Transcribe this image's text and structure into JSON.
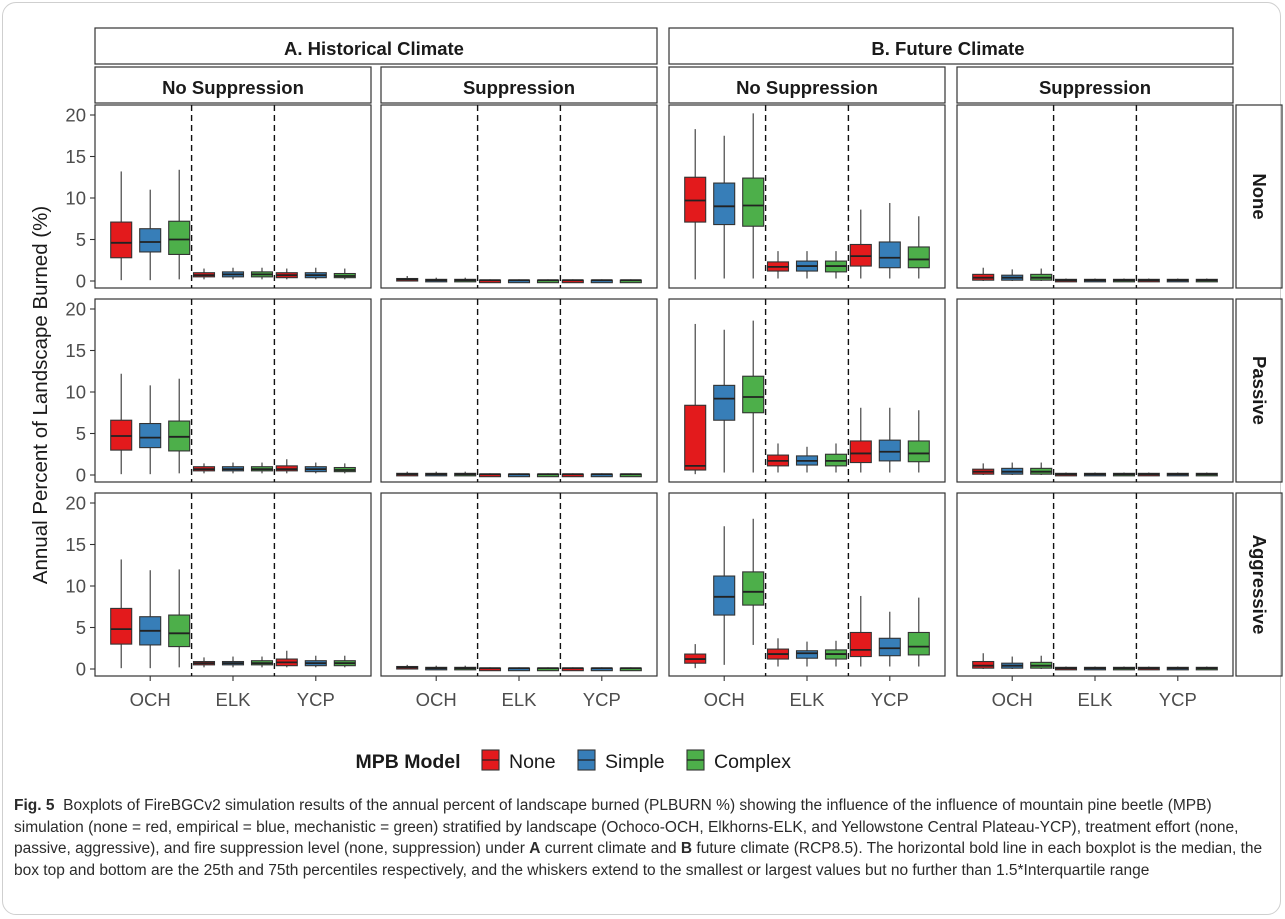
{
  "chart_data": {
    "type": "boxplot",
    "ylabel": "Annual Percent of Landscape Burned (%)",
    "ylim": [
      0,
      20
    ],
    "yticks": [
      0,
      5,
      10,
      15,
      20
    ],
    "climates": [
      "A. Historical Climate",
      "B. Future Climate"
    ],
    "suppression_levels": [
      "No Suppression",
      "Suppression"
    ],
    "treatments": [
      "None",
      "Passive",
      "Aggressive"
    ],
    "landscapes": [
      "OCH",
      "ELK",
      "YCP"
    ],
    "legend": {
      "title": "MPB Model",
      "position": "bottom",
      "entries": [
        {
          "name": "None",
          "color": "#e31a1c"
        },
        {
          "name": "Simple",
          "color": "#377eb8"
        },
        {
          "name": "Complex",
          "color": "#4daf4a"
        }
      ]
    },
    "box_fields": [
      "min",
      "q1",
      "median",
      "q3",
      "max"
    ],
    "panels": [
      {
        "climate": 0,
        "suppression": 0,
        "treatment": 0,
        "boxes": [
          [
            [
              0.1,
              2.8,
              4.6,
              7.1,
              13.2
            ],
            [
              0.1,
              3.5,
              4.7,
              6.3,
              11.0
            ],
            [
              0.2,
              3.2,
              5.0,
              7.2,
              13.4
            ]
          ],
          [
            [
              0.2,
              0.5,
              0.7,
              1.0,
              1.5
            ],
            [
              0.2,
              0.5,
              0.8,
              1.1,
              1.6
            ],
            [
              0.2,
              0.5,
              0.8,
              1.1,
              1.6
            ]
          ],
          [
            [
              0.2,
              0.4,
              0.7,
              1.0,
              1.5
            ],
            [
              0.2,
              0.4,
              0.7,
              1.0,
              1.6
            ],
            [
              0.2,
              0.4,
              0.6,
              0.9,
              1.5
            ]
          ]
        ]
      },
      {
        "climate": 0,
        "suppression": 0,
        "treatment": 1,
        "boxes": [
          [
            [
              0.1,
              3.0,
              4.7,
              6.6,
              12.2
            ],
            [
              0.1,
              3.3,
              4.5,
              6.2,
              10.8
            ],
            [
              0.2,
              2.9,
              4.6,
              6.5,
              11.6
            ]
          ],
          [
            [
              0.2,
              0.5,
              0.7,
              1.0,
              1.4
            ],
            [
              0.2,
              0.5,
              0.7,
              1.0,
              1.5
            ],
            [
              0.2,
              0.5,
              0.7,
              1.0,
              1.5
            ]
          ],
          [
            [
              0.2,
              0.5,
              0.7,
              1.1,
              1.9
            ],
            [
              0.2,
              0.4,
              0.7,
              1.0,
              1.5
            ],
            [
              0.2,
              0.4,
              0.6,
              0.9,
              1.4
            ]
          ]
        ]
      },
      {
        "climate": 0,
        "suppression": 0,
        "treatment": 2,
        "boxes": [
          [
            [
              0.1,
              3.0,
              4.8,
              7.3,
              13.2
            ],
            [
              0.1,
              2.9,
              4.6,
              6.3,
              11.9
            ],
            [
              0.2,
              2.7,
              4.3,
              6.5,
              12.0
            ]
          ],
          [
            [
              0.2,
              0.5,
              0.7,
              0.9,
              1.4
            ],
            [
              0.2,
              0.5,
              0.7,
              0.9,
              1.5
            ],
            [
              0.2,
              0.5,
              0.7,
              1.0,
              1.5
            ]
          ],
          [
            [
              0.2,
              0.4,
              0.8,
              1.2,
              2.2
            ],
            [
              0.2,
              0.4,
              0.7,
              1.0,
              1.6
            ],
            [
              0.2,
              0.4,
              0.7,
              1.0,
              1.6
            ]
          ]
        ]
      },
      {
        "climate": 0,
        "suppression": 1,
        "treatment": 0,
        "boxes": [
          [
            [
              0.0,
              0.1,
              0.2,
              0.3,
              0.6
            ],
            [
              0.0,
              0.1,
              0.1,
              0.2,
              0.4
            ],
            [
              0.0,
              0.1,
              0.1,
              0.2,
              0.4
            ]
          ],
          [
            [
              0.0,
              0.0,
              0.1,
              0.1,
              0.2
            ],
            [
              0.0,
              0.0,
              0.1,
              0.1,
              0.2
            ],
            [
              0.0,
              0.0,
              0.1,
              0.1,
              0.2
            ]
          ],
          [
            [
              0.0,
              0.0,
              0.1,
              0.1,
              0.2
            ],
            [
              0.0,
              0.0,
              0.1,
              0.1,
              0.2
            ],
            [
              0.0,
              0.0,
              0.1,
              0.1,
              0.2
            ]
          ]
        ]
      },
      {
        "climate": 0,
        "suppression": 1,
        "treatment": 1,
        "boxes": [
          [
            [
              0.0,
              0.1,
              0.1,
              0.2,
              0.4
            ],
            [
              0.0,
              0.1,
              0.1,
              0.2,
              0.4
            ],
            [
              0.0,
              0.1,
              0.1,
              0.2,
              0.4
            ]
          ],
          [
            [
              0.0,
              0.0,
              0.1,
              0.1,
              0.2
            ],
            [
              0.0,
              0.0,
              0.1,
              0.1,
              0.2
            ],
            [
              0.0,
              0.0,
              0.1,
              0.1,
              0.2
            ]
          ],
          [
            [
              0.0,
              0.0,
              0.1,
              0.1,
              0.2
            ],
            [
              0.0,
              0.0,
              0.1,
              0.1,
              0.2
            ],
            [
              0.0,
              0.0,
              0.1,
              0.1,
              0.2
            ]
          ]
        ]
      },
      {
        "climate": 0,
        "suppression": 1,
        "treatment": 2,
        "boxes": [
          [
            [
              0.0,
              0.1,
              0.2,
              0.3,
              0.5
            ],
            [
              0.0,
              0.1,
              0.1,
              0.2,
              0.4
            ],
            [
              0.0,
              0.1,
              0.1,
              0.2,
              0.4
            ]
          ],
          [
            [
              0.0,
              0.0,
              0.1,
              0.1,
              0.2
            ],
            [
              0.0,
              0.0,
              0.1,
              0.1,
              0.2
            ],
            [
              0.0,
              0.0,
              0.1,
              0.1,
              0.2
            ]
          ],
          [
            [
              0.0,
              0.0,
              0.1,
              0.1,
              0.2
            ],
            [
              0.0,
              0.0,
              0.1,
              0.1,
              0.2
            ],
            [
              0.0,
              0.0,
              0.1,
              0.1,
              0.2
            ]
          ]
        ]
      },
      {
        "climate": 1,
        "suppression": 0,
        "treatment": 0,
        "boxes": [
          [
            [
              0.2,
              7.1,
              9.7,
              12.5,
              18.3
            ],
            [
              0.3,
              6.8,
              9.0,
              11.8,
              17.5
            ],
            [
              0.3,
              6.6,
              9.1,
              12.4,
              20.2
            ]
          ],
          [
            [
              0.3,
              1.2,
              1.7,
              2.3,
              3.6
            ],
            [
              0.3,
              1.2,
              1.8,
              2.4,
              3.6
            ],
            [
              0.3,
              1.1,
              1.8,
              2.4,
              3.6
            ]
          ],
          [
            [
              0.3,
              1.8,
              3.0,
              4.4,
              8.6
            ],
            [
              0.3,
              1.6,
              2.8,
              4.7,
              9.4
            ],
            [
              0.3,
              1.6,
              2.6,
              4.1,
              7.8
            ]
          ]
        ]
      },
      {
        "climate": 1,
        "suppression": 0,
        "treatment": 1,
        "boxes": [
          [
            [
              0.1,
              0.6,
              1.1,
              8.4,
              18.2
            ],
            [
              0.3,
              6.6,
              9.2,
              10.8,
              17.5
            ],
            [
              0.3,
              7.5,
              9.4,
              11.9,
              18.6
            ]
          ],
          [
            [
              0.3,
              1.1,
              1.7,
              2.4,
              3.8
            ],
            [
              0.3,
              1.2,
              1.7,
              2.3,
              3.4
            ],
            [
              0.3,
              1.1,
              1.7,
              2.5,
              3.8
            ]
          ],
          [
            [
              0.3,
              1.5,
              2.6,
              4.1,
              8.1
            ],
            [
              0.3,
              1.7,
              2.8,
              4.2,
              8.1
            ],
            [
              0.3,
              1.6,
              2.6,
              4.1,
              7.8
            ]
          ]
        ]
      },
      {
        "climate": 1,
        "suppression": 0,
        "treatment": 2,
        "boxes": [
          [
            [
              0.1,
              0.7,
              1.2,
              1.8,
              3.0
            ],
            [
              0.5,
              6.5,
              8.7,
              11.2,
              17.2
            ],
            [
              2.9,
              7.7,
              9.3,
              11.7,
              18.1
            ]
          ],
          [
            [
              0.3,
              1.2,
              1.8,
              2.4,
              3.7
            ],
            [
              0.3,
              1.3,
              1.9,
              2.2,
              3.3
            ],
            [
              0.3,
              1.2,
              1.8,
              2.3,
              3.4
            ]
          ],
          [
            [
              0.3,
              1.5,
              2.3,
              4.4,
              8.8
            ],
            [
              0.3,
              1.6,
              2.5,
              3.7,
              6.9
            ],
            [
              0.3,
              1.7,
              2.7,
              4.4,
              8.6
            ]
          ]
        ]
      },
      {
        "climate": 1,
        "suppression": 1,
        "treatment": 0,
        "boxes": [
          [
            [
              0.0,
              0.1,
              0.4,
              0.8,
              1.6
            ],
            [
              0.0,
              0.1,
              0.4,
              0.7,
              1.4
            ],
            [
              0.0,
              0.1,
              0.4,
              0.8,
              1.5
            ]
          ],
          [
            [
              0.0,
              0.0,
              0.1,
              0.2,
              0.3
            ],
            [
              0.0,
              0.0,
              0.1,
              0.2,
              0.3
            ],
            [
              0.0,
              0.0,
              0.1,
              0.2,
              0.3
            ]
          ],
          [
            [
              0.0,
              0.0,
              0.1,
              0.2,
              0.3
            ],
            [
              0.0,
              0.0,
              0.1,
              0.2,
              0.3
            ],
            [
              0.0,
              0.0,
              0.1,
              0.2,
              0.3
            ]
          ]
        ]
      },
      {
        "climate": 1,
        "suppression": 1,
        "treatment": 1,
        "boxes": [
          [
            [
              0.0,
              0.1,
              0.4,
              0.7,
              1.4
            ],
            [
              0.0,
              0.1,
              0.4,
              0.8,
              1.5
            ],
            [
              0.0,
              0.1,
              0.4,
              0.8,
              1.5
            ]
          ],
          [
            [
              0.0,
              0.0,
              0.1,
              0.2,
              0.3
            ],
            [
              0.0,
              0.0,
              0.1,
              0.2,
              0.3
            ],
            [
              0.0,
              0.0,
              0.1,
              0.2,
              0.3
            ]
          ],
          [
            [
              0.0,
              0.0,
              0.1,
              0.2,
              0.3
            ],
            [
              0.0,
              0.0,
              0.1,
              0.2,
              0.3
            ],
            [
              0.0,
              0.0,
              0.1,
              0.2,
              0.3
            ]
          ]
        ]
      },
      {
        "climate": 1,
        "suppression": 1,
        "treatment": 2,
        "boxes": [
          [
            [
              0.0,
              0.1,
              0.4,
              0.9,
              1.9
            ],
            [
              0.0,
              0.1,
              0.4,
              0.7,
              1.5
            ],
            [
              0.0,
              0.1,
              0.4,
              0.8,
              1.6
            ]
          ],
          [
            [
              0.0,
              0.0,
              0.1,
              0.2,
              0.3
            ],
            [
              0.0,
              0.0,
              0.1,
              0.2,
              0.3
            ],
            [
              0.0,
              0.0,
              0.1,
              0.2,
              0.3
            ]
          ],
          [
            [
              0.0,
              0.0,
              0.1,
              0.2,
              0.3
            ],
            [
              0.0,
              0.0,
              0.1,
              0.2,
              0.3
            ],
            [
              0.0,
              0.0,
              0.1,
              0.2,
              0.3
            ]
          ]
        ]
      }
    ]
  },
  "caption": {
    "label": "Fig. 5",
    "body": "Boxplots of FireBGCv2 simulation results of the annual percent of landscape burned (PLBURN %) showing the influence of the influence of mountain pine beetle (MPB) simulation (none = red, empirical = blue, mechanistic = green) stratified by landscape (Ochoco-OCH, Elkhorns-ELK, and Yellowstone Central Plateau-YCP), treatment effort (none, passive, aggressive), and fire suppression level (none, suppression) under",
    "a_label": "A",
    "a_text": "current climate and",
    "b_label": "B",
    "b_text": "future climate (RCP8.5). The horizontal bold line in each boxplot is the median, the box top and bottom are the 25th and 75th percentiles respectively, and the whiskers extend to the smallest or largest values but no further than 1.5*Interquartile range"
  }
}
